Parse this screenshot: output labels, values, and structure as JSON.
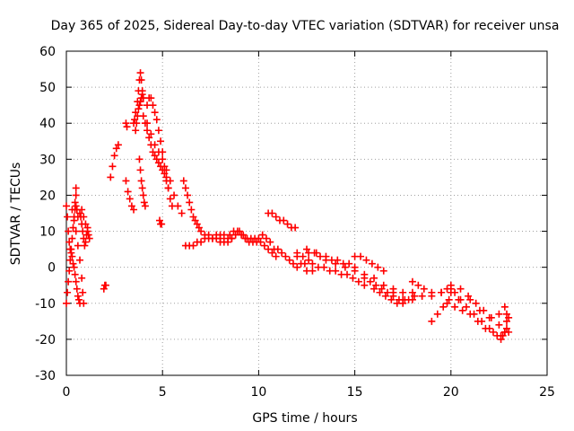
{
  "chart_data": {
    "type": "scatter",
    "title": "Day 365 of 2025, Sidereal Day-to-day VTEC variation (SDTVAR) for receiver unsa",
    "xlabel": "GPS time / hours",
    "ylabel": "SDTVAR / TECUs",
    "xlim": [
      0,
      25
    ],
    "ylim": [
      -30,
      60
    ],
    "xticks": [
      0,
      5,
      10,
      15,
      20,
      25
    ],
    "yticks": [
      -30,
      -20,
      -10,
      0,
      10,
      20,
      30,
      40,
      50,
      60
    ],
    "xtick_labels": [
      "0",
      "5",
      "10",
      "15",
      "20",
      "25"
    ],
    "ytick_labels": [
      "-30",
      "-20",
      "-10",
      "0",
      "10",
      "20",
      "30",
      "40",
      "50",
      "60"
    ],
    "grid": true,
    "marker": "+",
    "series": [
      {
        "name": "SDTVAR",
        "color": "#ff0000",
        "points": [
          [
            0.0,
            17
          ],
          [
            0.05,
            14
          ],
          [
            0.1,
            10
          ],
          [
            0.15,
            7
          ],
          [
            0.2,
            5
          ],
          [
            0.25,
            4
          ],
          [
            0.3,
            3
          ],
          [
            0.35,
            1
          ],
          [
            0.4,
            0
          ],
          [
            0.45,
            -2
          ],
          [
            0.5,
            -4
          ],
          [
            0.55,
            -6
          ],
          [
            0.6,
            -8
          ],
          [
            0.65,
            -9
          ],
          [
            0.7,
            -10
          ],
          [
            0.0,
            -10
          ],
          [
            0.05,
            -7
          ],
          [
            0.1,
            -4
          ],
          [
            0.15,
            -1
          ],
          [
            0.2,
            2
          ],
          [
            0.25,
            5
          ],
          [
            0.3,
            8
          ],
          [
            0.35,
            11
          ],
          [
            0.4,
            14
          ],
          [
            0.45,
            16
          ],
          [
            0.5,
            17
          ],
          [
            0.55,
            16
          ],
          [
            0.6,
            14
          ],
          [
            0.3,
            16
          ],
          [
            0.4,
            13
          ],
          [
            0.5,
            10
          ],
          [
            0.6,
            6
          ],
          [
            0.7,
            2
          ],
          [
            0.8,
            -3
          ],
          [
            0.85,
            -7
          ],
          [
            0.9,
            -10
          ],
          [
            0.5,
            20
          ],
          [
            0.5,
            22
          ],
          [
            0.45,
            18
          ],
          [
            0.7,
            15
          ],
          [
            0.75,
            14
          ],
          [
            0.8,
            12
          ],
          [
            0.85,
            10
          ],
          [
            0.9,
            8
          ],
          [
            0.95,
            6
          ],
          [
            1.0,
            7
          ],
          [
            1.05,
            9
          ],
          [
            1.1,
            11
          ],
          [
            1.15,
            9
          ],
          [
            1.2,
            8
          ],
          [
            0.8,
            16
          ],
          [
            0.9,
            14
          ],
          [
            1.0,
            12
          ],
          [
            1.1,
            10
          ],
          [
            2.0,
            -5
          ],
          [
            2.05,
            -5
          ],
          [
            1.95,
            -6
          ],
          [
            2.3,
            25
          ],
          [
            2.4,
            28
          ],
          [
            2.5,
            31
          ],
          [
            2.6,
            33
          ],
          [
            2.7,
            34
          ],
          [
            3.1,
            40
          ],
          [
            3.15,
            39
          ],
          [
            3.1,
            24
          ],
          [
            3.2,
            21
          ],
          [
            3.3,
            19
          ],
          [
            3.4,
            17
          ],
          [
            3.5,
            16
          ],
          [
            3.5,
            40
          ],
          [
            3.55,
            41
          ],
          [
            3.6,
            43
          ],
          [
            3.7,
            46
          ],
          [
            3.75,
            49
          ],
          [
            3.8,
            52
          ],
          [
            3.85,
            54
          ],
          [
            3.9,
            52
          ],
          [
            3.95,
            49
          ],
          [
            4.0,
            47
          ],
          [
            3.6,
            38
          ],
          [
            3.65,
            40
          ],
          [
            3.7,
            42
          ],
          [
            3.75,
            44
          ],
          [
            3.8,
            45
          ],
          [
            3.85,
            46
          ],
          [
            3.9,
            47
          ],
          [
            3.95,
            48
          ],
          [
            4.0,
            47
          ],
          [
            3.8,
            30
          ],
          [
            3.85,
            27
          ],
          [
            3.9,
            24
          ],
          [
            3.95,
            22
          ],
          [
            4.0,
            20
          ],
          [
            4.05,
            18
          ],
          [
            4.1,
            17
          ],
          [
            4.2,
            45
          ],
          [
            4.3,
            47
          ],
          [
            4.4,
            47
          ],
          [
            4.5,
            45
          ],
          [
            4.6,
            43
          ],
          [
            4.7,
            41
          ],
          [
            4.8,
            38
          ],
          [
            4.9,
            35
          ],
          [
            5.0,
            32
          ],
          [
            5.1,
            28
          ],
          [
            5.2,
            25
          ],
          [
            5.3,
            22
          ],
          [
            5.4,
            19
          ],
          [
            5.5,
            17
          ],
          [
            4.0,
            42
          ],
          [
            4.1,
            40
          ],
          [
            4.2,
            38
          ],
          [
            4.3,
            36
          ],
          [
            4.4,
            34
          ],
          [
            4.5,
            32
          ],
          [
            4.6,
            31
          ],
          [
            4.7,
            30
          ],
          [
            4.8,
            29
          ],
          [
            4.9,
            28
          ],
          [
            5.0,
            27
          ],
          [
            5.1,
            26
          ],
          [
            5.2,
            24
          ],
          [
            5.3,
            22
          ],
          [
            4.2,
            40
          ],
          [
            4.4,
            37
          ],
          [
            4.6,
            34
          ],
          [
            4.8,
            32
          ],
          [
            5.0,
            30
          ],
          [
            5.2,
            27
          ],
          [
            5.4,
            24
          ],
          [
            5.6,
            20
          ],
          [
            5.8,
            17
          ],
          [
            6.0,
            15
          ],
          [
            4.9,
            12
          ],
          [
            4.95,
            12
          ],
          [
            4.85,
            13
          ],
          [
            6.1,
            24
          ],
          [
            6.2,
            22
          ],
          [
            6.3,
            20
          ],
          [
            6.4,
            18
          ],
          [
            6.5,
            16
          ],
          [
            6.6,
            14
          ],
          [
            6.7,
            13
          ],
          [
            6.8,
            12
          ],
          [
            6.9,
            11
          ],
          [
            7.0,
            10
          ],
          [
            7.2,
            9
          ],
          [
            7.4,
            9
          ],
          [
            7.6,
            8
          ],
          [
            7.8,
            8
          ],
          [
            8.0,
            7
          ],
          [
            6.2,
            6
          ],
          [
            6.4,
            6
          ],
          [
            6.6,
            6
          ],
          [
            6.8,
            7
          ],
          [
            7.0,
            7
          ],
          [
            7.2,
            8
          ],
          [
            7.4,
            8
          ],
          [
            7.6,
            8
          ],
          [
            7.8,
            9
          ],
          [
            8.0,
            9
          ],
          [
            8.2,
            9
          ],
          [
            8.4,
            8
          ],
          [
            8.6,
            8
          ],
          [
            8.0,
            8
          ],
          [
            8.2,
            7
          ],
          [
            8.4,
            7
          ],
          [
            8.6,
            8
          ],
          [
            8.8,
            9
          ],
          [
            9.0,
            10
          ],
          [
            9.2,
            9
          ],
          [
            9.4,
            8
          ],
          [
            9.6,
            8
          ],
          [
            9.8,
            8
          ],
          [
            10.0,
            8
          ],
          [
            10.2,
            9
          ],
          [
            10.4,
            8
          ],
          [
            10.6,
            7
          ],
          [
            10.8,
            5
          ],
          [
            8.5,
            9
          ],
          [
            8.7,
            10
          ],
          [
            8.9,
            10
          ],
          [
            9.1,
            9
          ],
          [
            9.3,
            8
          ],
          [
            9.5,
            7
          ],
          [
            9.7,
            7
          ],
          [
            9.9,
            7
          ],
          [
            10.1,
            7
          ],
          [
            10.3,
            6
          ],
          [
            10.5,
            5
          ],
          [
            10.7,
            4
          ],
          [
            10.9,
            3
          ],
          [
            10.5,
            15
          ],
          [
            10.7,
            15
          ],
          [
            10.9,
            14
          ],
          [
            11.1,
            13
          ],
          [
            11.3,
            13
          ],
          [
            11.5,
            12
          ],
          [
            11.7,
            11
          ],
          [
            11.9,
            11
          ],
          [
            11.0,
            5
          ],
          [
            11.2,
            4
          ],
          [
            11.4,
            3
          ],
          [
            11.6,
            2
          ],
          [
            11.8,
            1
          ],
          [
            12.0,
            0
          ],
          [
            12.2,
            1
          ],
          [
            12.4,
            1
          ],
          [
            12.6,
            2
          ],
          [
            12.8,
            1
          ],
          [
            12.0,
            3
          ],
          [
            12.3,
            3
          ],
          [
            12.6,
            4
          ],
          [
            12.9,
            4
          ],
          [
            13.2,
            3
          ],
          [
            13.5,
            3
          ],
          [
            13.8,
            2
          ],
          [
            14.1,
            2
          ],
          [
            14.4,
            1
          ],
          [
            14.7,
            1
          ],
          [
            15.0,
            0
          ],
          [
            12.5,
            -1
          ],
          [
            12.8,
            -1
          ],
          [
            13.1,
            0
          ],
          [
            13.4,
            0
          ],
          [
            13.7,
            -1
          ],
          [
            14.0,
            -1
          ],
          [
            14.3,
            -2
          ],
          [
            14.6,
            -2
          ],
          [
            14.9,
            -3
          ],
          [
            15.2,
            -4
          ],
          [
            15.5,
            -5
          ],
          [
            12.0,
            4
          ],
          [
            12.5,
            5
          ],
          [
            13.0,
            4
          ],
          [
            13.5,
            2
          ],
          [
            14.0,
            1
          ],
          [
            14.5,
            0
          ],
          [
            15.0,
            -1
          ],
          [
            15.5,
            -2
          ],
          [
            16.0,
            -3
          ],
          [
            16.5,
            -5
          ],
          [
            17.0,
            -7
          ],
          [
            15.0,
            3
          ],
          [
            15.3,
            3
          ],
          [
            15.6,
            2
          ],
          [
            15.9,
            1
          ],
          [
            16.2,
            0
          ],
          [
            16.5,
            -1
          ],
          [
            15.5,
            -3
          ],
          [
            15.8,
            -4
          ],
          [
            16.1,
            -5
          ],
          [
            16.4,
            -6
          ],
          [
            16.7,
            -7
          ],
          [
            17.0,
            -8
          ],
          [
            17.3,
            -9
          ],
          [
            17.6,
            -9
          ],
          [
            16.0,
            -6
          ],
          [
            16.3,
            -7
          ],
          [
            16.6,
            -8
          ],
          [
            16.9,
            -9
          ],
          [
            17.2,
            -10
          ],
          [
            17.5,
            -10
          ],
          [
            17.8,
            -9
          ],
          [
            18.1,
            -8
          ],
          [
            17.0,
            -6
          ],
          [
            17.5,
            -7
          ],
          [
            18.0,
            -7
          ],
          [
            18.5,
            -8
          ],
          [
            19.0,
            -7
          ],
          [
            19.5,
            -7
          ],
          [
            20.0,
            -6
          ],
          [
            17.5,
            -9
          ],
          [
            18.0,
            -9
          ],
          [
            18.5,
            -8
          ],
          [
            19.0,
            -8
          ],
          [
            19.5,
            -7
          ],
          [
            19.8,
            -6
          ],
          [
            20.0,
            -5
          ],
          [
            18.0,
            -4
          ],
          [
            18.3,
            -5
          ],
          [
            18.6,
            -6
          ],
          [
            19.0,
            -15
          ],
          [
            19.3,
            -13
          ],
          [
            19.6,
            -11
          ],
          [
            19.9,
            -9
          ],
          [
            20.2,
            -7
          ],
          [
            20.5,
            -9
          ],
          [
            19.8,
            -10
          ],
          [
            20.2,
            -11
          ],
          [
            20.6,
            -12
          ],
          [
            21.0,
            -13
          ],
          [
            21.4,
            -15
          ],
          [
            21.8,
            -17
          ],
          [
            22.2,
            -18
          ],
          [
            22.6,
            -19
          ],
          [
            20.0,
            -7
          ],
          [
            20.4,
            -9
          ],
          [
            20.8,
            -11
          ],
          [
            21.2,
            -13
          ],
          [
            21.6,
            -15
          ],
          [
            22.0,
            -17
          ],
          [
            22.4,
            -19
          ],
          [
            22.8,
            -18
          ],
          [
            20.5,
            -6
          ],
          [
            20.9,
            -8
          ],
          [
            21.3,
            -10
          ],
          [
            21.7,
            -12
          ],
          [
            22.1,
            -14
          ],
          [
            22.5,
            -16
          ],
          [
            22.9,
            -15
          ],
          [
            21.0,
            -9
          ],
          [
            21.5,
            -12
          ],
          [
            22.0,
            -14
          ],
          [
            22.5,
            -13
          ],
          [
            22.8,
            -11
          ],
          [
            22.9,
            -13
          ],
          [
            23.0,
            -14
          ],
          [
            22.6,
            -20
          ],
          [
            22.7,
            -19
          ],
          [
            22.8,
            -18
          ],
          [
            22.9,
            -17
          ],
          [
            23.0,
            -18
          ]
        ]
      }
    ]
  }
}
